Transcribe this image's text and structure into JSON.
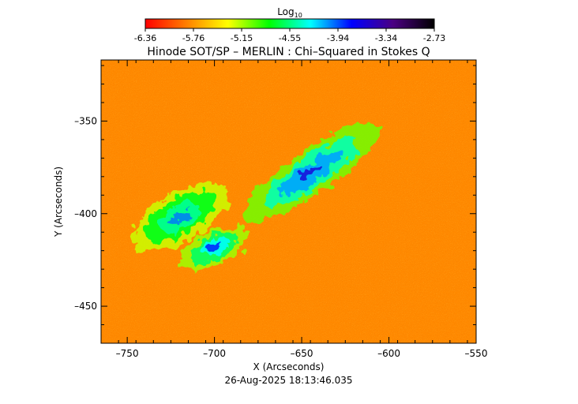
{
  "colorbar": {
    "label_main": "Log",
    "label_sub": "10",
    "tick_labels": [
      "-6.36",
      "-5.76",
      "-5.15",
      "-4.55",
      "-3.94",
      "-3.34",
      "-2.73"
    ],
    "colors": [
      "#ff0000",
      "#ff7f00",
      "#ffff00",
      "#00ff00",
      "#00ffff",
      "#0000ff",
      "#4b0082",
      "#000000"
    ]
  },
  "footer": {
    "timestamp": "26-Aug-2025 18:13:46.035"
  },
  "chart_data": {
    "type": "heatmap",
    "title": "Hinode SOT/SP – MERLIN : Chi–Squared in Stokes Q",
    "xlabel": "X (Arcseconds)",
    "ylabel": "Y (Arcseconds)",
    "xlim": [
      -765,
      -550
    ],
    "ylim": [
      -470,
      -317
    ],
    "x_ticks": [
      -750,
      -700,
      -650,
      -600,
      -550
    ],
    "y_ticks": [
      -350,
      -400,
      -450
    ],
    "x_tick_labels": [
      "–750",
      "–700",
      "–650",
      "–600",
      "–550"
    ],
    "y_tick_labels": [
      "–350",
      "–400",
      "–450"
    ],
    "colorscale": "log10",
    "value_range": [
      -6.36,
      -2.73
    ],
    "background_level": -5.8,
    "regions": [
      {
        "name": "region-1",
        "x": -645,
        "y": -378,
        "a": 45,
        "b": 12,
        "angle": -35,
        "level": -4.1
      },
      {
        "name": "region-2",
        "x": -720,
        "y": -402,
        "a": 30,
        "b": 14,
        "angle": -30,
        "level": -4.5
      },
      {
        "name": "region-3",
        "x": -700,
        "y": -418,
        "a": 20,
        "b": 9,
        "angle": -25,
        "level": -4.3
      }
    ]
  }
}
